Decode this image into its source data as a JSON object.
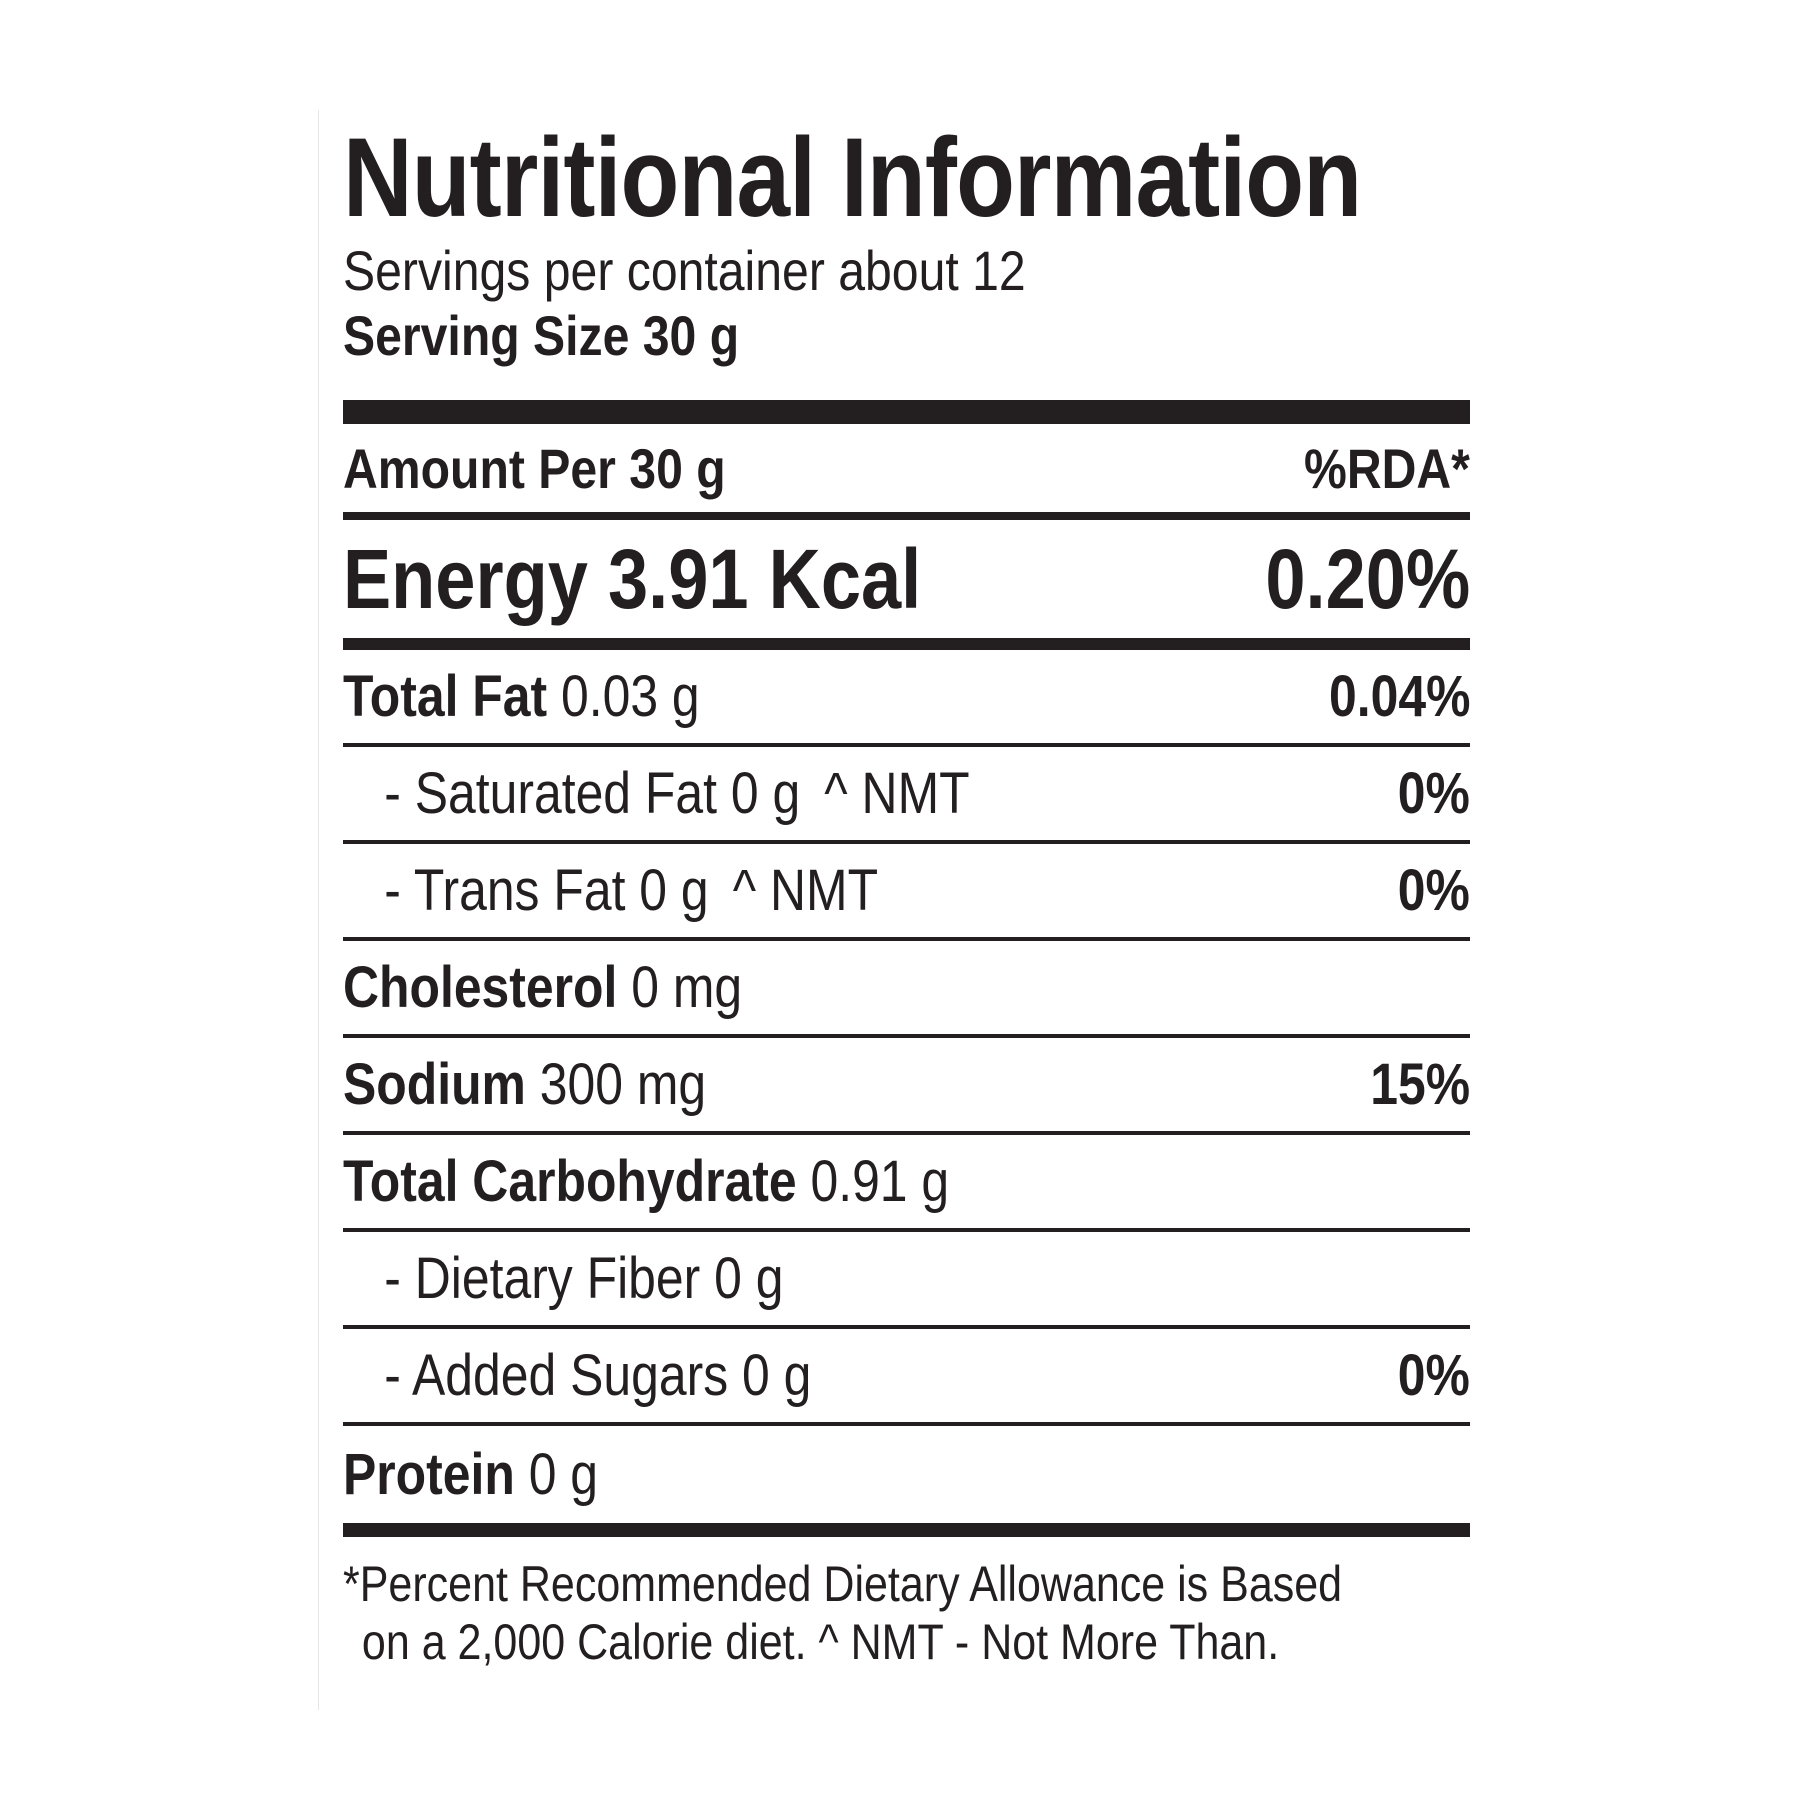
{
  "title": "Nutritional Information",
  "servings_per_container": "Servings per container about 12",
  "serving_size": "Serving Size 30 g",
  "header": {
    "amount_label": "Amount Per 30 g",
    "rda_label": "%RDA*"
  },
  "energy": {
    "label": "Energy 3.91 Kcal",
    "rda": "0.20%"
  },
  "nutrients": [
    {
      "name": "Total Fat",
      "amount": "0.03 g",
      "note": "",
      "rda": "0.04%"
    },
    {
      "name": "- Saturated Fat",
      "amount": "0 g",
      "note": "^ NMT",
      "rda": "0%"
    },
    {
      "name": "- Trans Fat",
      "amount": "0 g",
      "note": "^ NMT",
      "rda": "0%"
    },
    {
      "name": "Cholesterol",
      "amount": "0 mg",
      "note": "",
      "rda": ""
    },
    {
      "name": "Sodium",
      "amount": "300 mg",
      "note": "",
      "rda": "15%"
    },
    {
      "name": "Total Carbohydrate",
      "amount": "0.91 g",
      "note": "",
      "rda": ""
    },
    {
      "name": "- Dietary Fiber",
      "amount": "0 g",
      "note": "",
      "rda": ""
    },
    {
      "name": "- Added Sugars",
      "amount": "0 g",
      "note": "",
      "rda": "0%"
    },
    {
      "name": "Protein",
      "amount": "0 g",
      "note": "",
      "rda": ""
    }
  ],
  "footnote": {
    "line1": "*Percent Recommended Dietary Allowance is Based",
    "line2": "on a 2,000 Calorie diet.  ^ NMT - Not More Than."
  }
}
